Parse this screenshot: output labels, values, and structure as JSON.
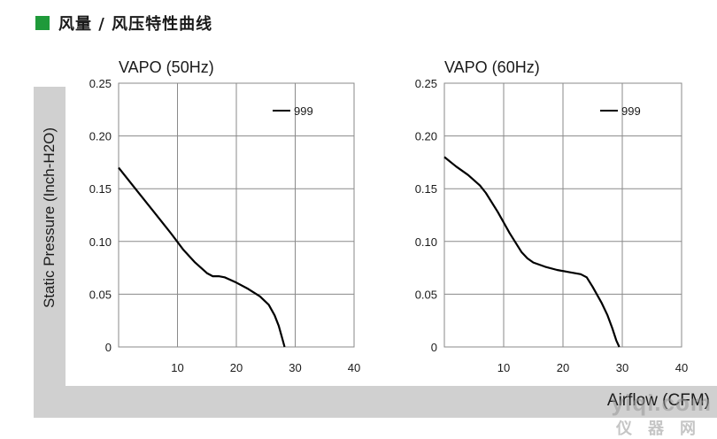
{
  "header": {
    "title": "风量 / 风压特性曲线",
    "accent_color": "#1f9a3a"
  },
  "axes": {
    "ylabel": "Static Pressure (Inch-H2O)",
    "xlabel": "Airflow (CFM)"
  },
  "watermark": {
    "text": "yiqi.com",
    "sub": "仪器网"
  },
  "chart_data": [
    {
      "type": "line",
      "title": "VAPO (50Hz)",
      "xlim": [
        0,
        40
      ],
      "ylim": [
        0,
        0.25
      ],
      "x_ticks": [
        "10",
        "20",
        "30",
        "40"
      ],
      "y_ticks": [
        "0",
        "0.05",
        "0.10",
        "0.15",
        "0.20",
        "0.25"
      ],
      "legend_position": "top-right",
      "series": [
        {
          "name": "999",
          "x": [
            0,
            3,
            6,
            9,
            11,
            13,
            15,
            16,
            17,
            18,
            20,
            22,
            24,
            25.5,
            26.5,
            27.2,
            27.8,
            28.2
          ],
          "y": [
            0.17,
            0.149,
            0.128,
            0.107,
            0.092,
            0.08,
            0.07,
            0.067,
            0.067,
            0.066,
            0.061,
            0.055,
            0.048,
            0.04,
            0.03,
            0.02,
            0.008,
            0.0
          ]
        }
      ]
    },
    {
      "type": "line",
      "title": "VAPO (60Hz)",
      "xlim": [
        0,
        40
      ],
      "ylim": [
        0,
        0.25
      ],
      "x_ticks": [
        "10",
        "20",
        "30",
        "40"
      ],
      "y_ticks": [
        "0",
        "0.05",
        "0.10",
        "0.15",
        "0.20",
        "0.25"
      ],
      "legend_position": "top-right",
      "series": [
        {
          "name": "999",
          "x": [
            0,
            2,
            4,
            6,
            7,
            9,
            11,
            13,
            14,
            15,
            17,
            19,
            21,
            23,
            24,
            25,
            26.5,
            27.5,
            28.3,
            29,
            29.5
          ],
          "y": [
            0.18,
            0.171,
            0.163,
            0.153,
            0.146,
            0.128,
            0.108,
            0.09,
            0.084,
            0.08,
            0.076,
            0.073,
            0.071,
            0.069,
            0.066,
            0.057,
            0.042,
            0.03,
            0.018,
            0.006,
            0.0
          ]
        }
      ]
    }
  ]
}
